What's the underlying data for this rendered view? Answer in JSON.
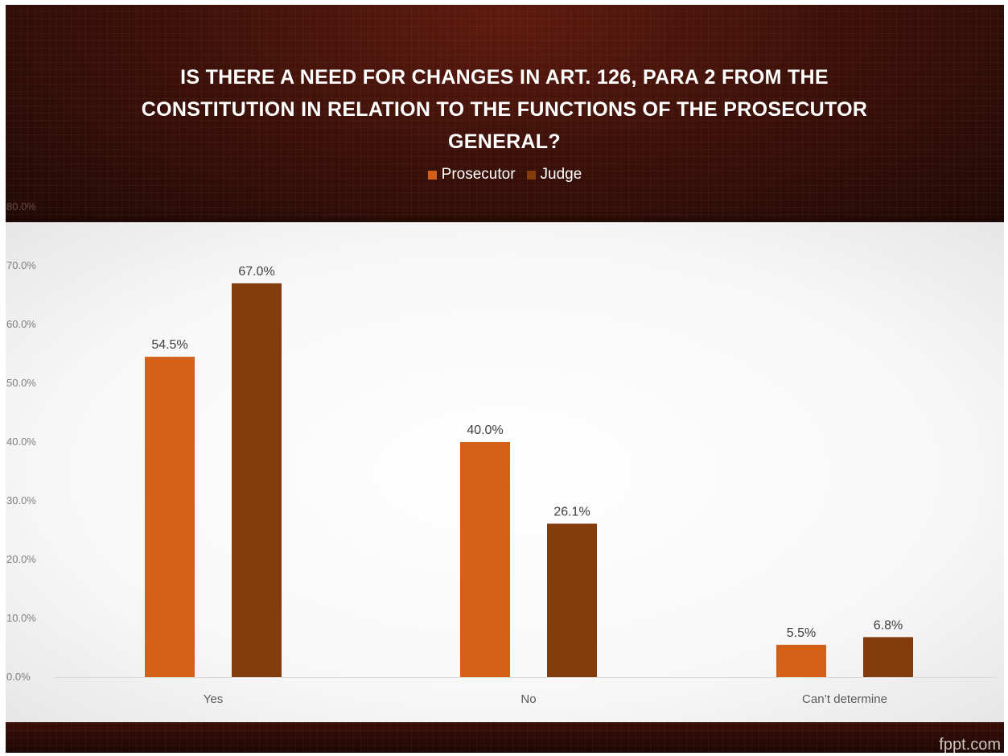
{
  "chart_data": {
    "type": "bar",
    "title": "IS THERE A NEED FOR CHANGES IN ART. 126, PARA 2 FROM THE CONSTITUTION IN RELATION TO THE FUNCTIONS OF THE PROSECUTOR GENERAL?",
    "categories": [
      "Yes",
      "No",
      "Can’t determine"
    ],
    "series": [
      {
        "name": "Prosecutor",
        "values": [
          54.5,
          40.0,
          5.5
        ],
        "labels": [
          "54.5%",
          "40.0%",
          "5.5%"
        ],
        "color": "#d45f17"
      },
      {
        "name": "Judge",
        "values": [
          67.0,
          26.1,
          6.8
        ],
        "labels": [
          "67.0%",
          "26.1%",
          "6.8%"
        ],
        "color": "#843c0c"
      }
    ],
    "yticks": [
      "0.0%",
      "10.0%",
      "20.0%",
      "30.0%",
      "40.0%",
      "50.0%",
      "60.0%",
      "70.0%",
      "80.0%"
    ],
    "ylim": [
      0,
      80
    ],
    "legend_position": "top",
    "grid": false
  },
  "watermark": "fppt.com"
}
